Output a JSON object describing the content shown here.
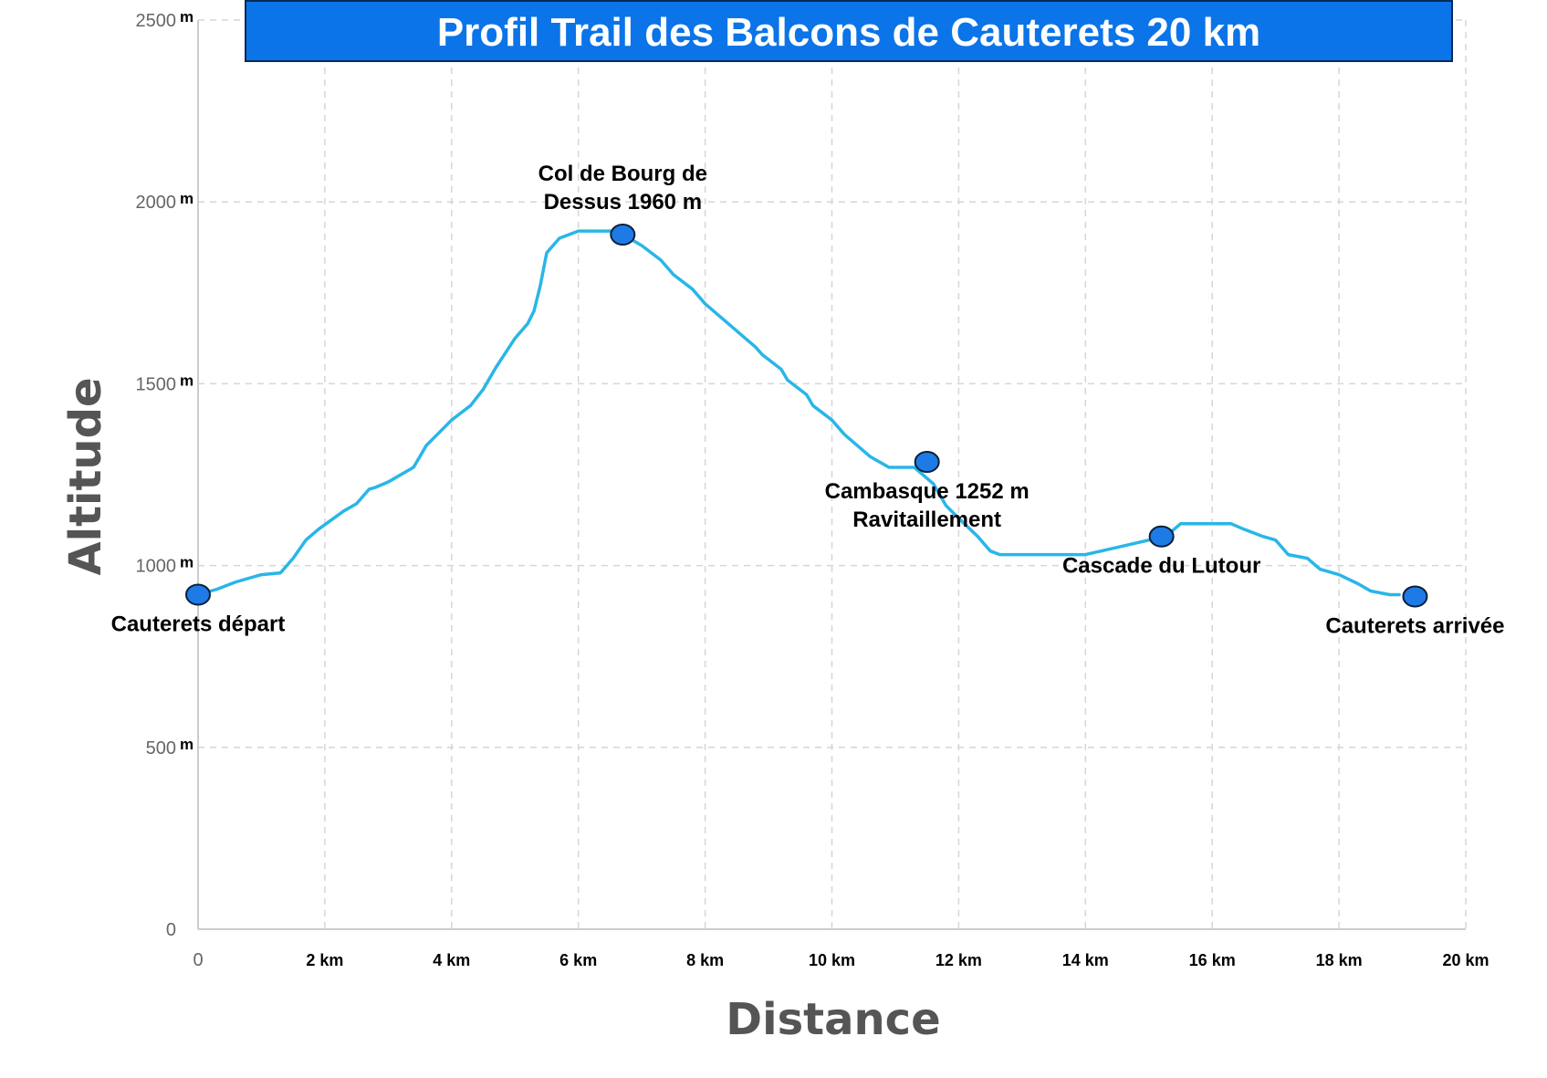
{
  "chart_data": {
    "type": "line",
    "title": "Profil Trail des Balcons de Cauterets 20 km",
    "xlabel": "Distance",
    "ylabel": "Altitude",
    "xlim": [
      0,
      20
    ],
    "ylim": [
      0,
      2500
    ],
    "grid": true,
    "x_ticks": [
      {
        "value": 0,
        "label": "0"
      },
      {
        "value": 2,
        "label": "2 km"
      },
      {
        "value": 4,
        "label": "4 km"
      },
      {
        "value": 6,
        "label": "6 km"
      },
      {
        "value": 8,
        "label": "8 km"
      },
      {
        "value": 10,
        "label": "10 km"
      },
      {
        "value": 12,
        "label": "12 km"
      },
      {
        "value": 14,
        "label": "14 km"
      },
      {
        "value": 16,
        "label": "16 km"
      },
      {
        "value": 18,
        "label": "18 km"
      },
      {
        "value": 20,
        "label": "20 km"
      }
    ],
    "y_ticks": [
      {
        "value": 0,
        "label": "0",
        "unit": ""
      },
      {
        "value": 500,
        "label": "500",
        "unit": "m"
      },
      {
        "value": 1000,
        "label": "1000",
        "unit": "m"
      },
      {
        "value": 1500,
        "label": "1500",
        "unit": "m"
      },
      {
        "value": 2000,
        "label": "2000",
        "unit": "m"
      },
      {
        "value": 2500,
        "label": "2500",
        "unit": "m"
      }
    ],
    "series": [
      {
        "color": "#29b6e8",
        "x": [
          0.0,
          0.3,
          0.6,
          0.8,
          1.0,
          1.3,
          1.5,
          1.7,
          1.9,
          2.1,
          2.3,
          2.5,
          2.7,
          2.8,
          3.0,
          3.2,
          3.4,
          3.5,
          3.6,
          3.8,
          4.0,
          4.3,
          4.5,
          4.7,
          5.0,
          5.2,
          5.3,
          5.4,
          5.5,
          5.7,
          6.0,
          6.7,
          6.8,
          7.0,
          7.3,
          7.5,
          7.8,
          8.0,
          8.4,
          8.8,
          8.9,
          9.2,
          9.3,
          9.6,
          9.7,
          10.0,
          10.2,
          10.4,
          10.6,
          10.9,
          11.3,
          11.6,
          11.8,
          12.0,
          12.3,
          12.5,
          12.65,
          13.0,
          14.0,
          14.5,
          15.0,
          15.3,
          15.5,
          16.0,
          16.3,
          16.5,
          16.8,
          17.0,
          17.2,
          17.5,
          17.7,
          18.0,
          18.3,
          18.5,
          18.8,
          18.95
        ],
        "y": [
          920,
          935,
          955,
          965,
          975,
          980,
          1020,
          1070,
          1100,
          1125,
          1150,
          1170,
          1210,
          1215,
          1230,
          1250,
          1270,
          1300,
          1330,
          1365,
          1400,
          1440,
          1485,
          1545,
          1625,
          1665,
          1700,
          1770,
          1860,
          1900,
          1920,
          1920,
          1900,
          1880,
          1840,
          1800,
          1760,
          1720,
          1660,
          1600,
          1580,
          1540,
          1510,
          1470,
          1440,
          1400,
          1360,
          1330,
          1300,
          1270,
          1270,
          1225,
          1165,
          1130,
          1080,
          1040,
          1030,
          1030,
          1030,
          1050,
          1070,
          1085,
          1115,
          1115,
          1115,
          1100,
          1080,
          1070,
          1030,
          1020,
          990,
          975,
          950,
          930,
          920,
          920
        ]
      }
    ],
    "annotations": [
      {
        "lines": [
          "Cauterets départ"
        ],
        "x": 0.0,
        "y": 920,
        "label_position": "below"
      },
      {
        "lines": [
          "Col de Bourg de",
          "Dessus 1960 m"
        ],
        "x": 6.7,
        "y": 1910,
        "label_position": "above"
      },
      {
        "lines": [
          "Cambasque 1252 m",
          "Ravitaillement"
        ],
        "x": 11.5,
        "y": 1285,
        "label_position": "below"
      },
      {
        "lines": [
          "Cascade du Lutour"
        ],
        "x": 15.2,
        "y": 1080,
        "label_position": "below"
      },
      {
        "lines": [
          "Cauterets arrivée"
        ],
        "x": 19.2,
        "y": 915,
        "label_position": "below"
      }
    ],
    "marker_color": "#1e7be6"
  },
  "title_banner_color": "#0a74e8"
}
